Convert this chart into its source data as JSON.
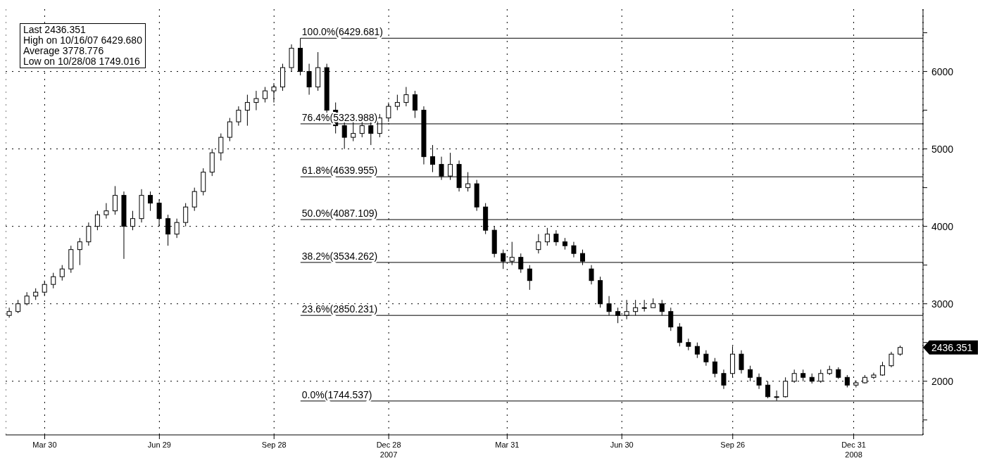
{
  "chart_data": {
    "type": "candlestick",
    "color": "#000000",
    "grid": true,
    "x": [
      "2007-03-02",
      "2007-03-09",
      "2007-03-16",
      "2007-03-23",
      "2007-03-30",
      "2007-04-06",
      "2007-04-13",
      "2007-04-20",
      "2007-04-27",
      "2007-05-04",
      "2007-05-11",
      "2007-05-18",
      "2007-05-25",
      "2007-06-01",
      "2007-06-08",
      "2007-06-15",
      "2007-06-22",
      "2007-06-29",
      "2007-07-06",
      "2007-07-13",
      "2007-07-20",
      "2007-07-27",
      "2007-08-03",
      "2007-08-10",
      "2007-08-17",
      "2007-08-24",
      "2007-08-31",
      "2007-09-07",
      "2007-09-14",
      "2007-09-21",
      "2007-09-28",
      "2007-10-05",
      "2007-10-12",
      "2007-10-19",
      "2007-10-26",
      "2007-11-02",
      "2007-11-09",
      "2007-11-16",
      "2007-11-23",
      "2007-11-30",
      "2007-12-07",
      "2007-12-14",
      "2007-12-21",
      "2007-12-28",
      "2008-01-04",
      "2008-01-11",
      "2008-01-18",
      "2008-01-25",
      "2008-02-01",
      "2008-02-08",
      "2008-02-15",
      "2008-02-22",
      "2008-02-29",
      "2008-03-07",
      "2008-03-14",
      "2008-03-21",
      "2008-03-28",
      "2008-04-04",
      "2008-04-11",
      "2008-04-18",
      "2008-04-25",
      "2008-05-02",
      "2008-05-09",
      "2008-05-16",
      "2008-05-23",
      "2008-05-30",
      "2008-06-06",
      "2008-06-13",
      "2008-06-20",
      "2008-06-27",
      "2008-07-04",
      "2008-07-11",
      "2008-07-18",
      "2008-07-25",
      "2008-08-01",
      "2008-08-08",
      "2008-08-15",
      "2008-08-22",
      "2008-08-29",
      "2008-09-05",
      "2008-09-12",
      "2008-09-19",
      "2008-09-26",
      "2008-10-03",
      "2008-10-10",
      "2008-10-17",
      "2008-10-24",
      "2008-10-31",
      "2008-11-07",
      "2008-11-14",
      "2008-11-21",
      "2008-11-28",
      "2008-12-05",
      "2008-12-12",
      "2008-12-19",
      "2008-12-26",
      "2009-01-02",
      "2009-01-09",
      "2009-01-16",
      "2009-01-23",
      "2009-01-30",
      "2009-02-06"
    ],
    "ohlc": [
      [
        2850,
        2950,
        2820,
        2900
      ],
      [
        2900,
        3050,
        2880,
        3000
      ],
      [
        3000,
        3150,
        2980,
        3100
      ],
      [
        3100,
        3200,
        3050,
        3150
      ],
      [
        3150,
        3300,
        3100,
        3250
      ],
      [
        3250,
        3400,
        3200,
        3350
      ],
      [
        3350,
        3500,
        3300,
        3450
      ],
      [
        3450,
        3750,
        3400,
        3700
      ],
      [
        3700,
        3850,
        3500,
        3800
      ],
      [
        3800,
        4050,
        3750,
        4000
      ],
      [
        4000,
        4200,
        3950,
        4150
      ],
      [
        4150,
        4300,
        4100,
        4200
      ],
      [
        4200,
        4520,
        4150,
        4400
      ],
      [
        4400,
        4450,
        3580,
        4000
      ],
      [
        4000,
        4200,
        3950,
        4100
      ],
      [
        4100,
        4480,
        4050,
        4400
      ],
      [
        4400,
        4450,
        4200,
        4300
      ],
      [
        4300,
        4350,
        4000,
        4100
      ],
      [
        4100,
        4150,
        3750,
        3900
      ],
      [
        3900,
        4100,
        3850,
        4050
      ],
      [
        4050,
        4300,
        4000,
        4250
      ],
      [
        4250,
        4500,
        4200,
        4450
      ],
      [
        4450,
        4750,
        4400,
        4700
      ],
      [
        4700,
        5000,
        4650,
        4950
      ],
      [
        4950,
        5200,
        4850,
        5150
      ],
      [
        5150,
        5400,
        5100,
        5350
      ],
      [
        5350,
        5550,
        5300,
        5500
      ],
      [
        5500,
        5700,
        5300,
        5600
      ],
      [
        5600,
        5750,
        5500,
        5650
      ],
      [
        5650,
        5800,
        5600,
        5750
      ],
      [
        5750,
        5850,
        5600,
        5800
      ],
      [
        5800,
        6100,
        5750,
        6050
      ],
      [
        6050,
        6350,
        6000,
        6300
      ],
      [
        6300,
        6429.68,
        5950,
        6000
      ],
      [
        6000,
        6100,
        5700,
        5800
      ],
      [
        5800,
        6250,
        5750,
        6050
      ],
      [
        6050,
        6100,
        5400,
        5500
      ],
      [
        5500,
        5600,
        5200,
        5300
      ],
      [
        5300,
        5350,
        5000,
        5150
      ],
      [
        5150,
        5400,
        5100,
        5200
      ],
      [
        5200,
        5450,
        5150,
        5300
      ],
      [
        5300,
        5350,
        5050,
        5200
      ],
      [
        5200,
        5450,
        5150,
        5400
      ],
      [
        5400,
        5600,
        5350,
        5550
      ],
      [
        5550,
        5700,
        5500,
        5600
      ],
      [
        5600,
        5800,
        5550,
        5700
      ],
      [
        5700,
        5750,
        5400,
        5500
      ],
      [
        5500,
        5550,
        4800,
        4900
      ],
      [
        4900,
        5050,
        4700,
        4800
      ],
      [
        4800,
        4900,
        4600,
        4650
      ],
      [
        4650,
        4950,
        4600,
        4800
      ],
      [
        4800,
        4850,
        4450,
        4500
      ],
      [
        4500,
        4700,
        4450,
        4550
      ],
      [
        4550,
        4600,
        4200,
        4250
      ],
      [
        4250,
        4300,
        3900,
        3950
      ],
      [
        3950,
        4000,
        3600,
        3650
      ],
      [
        3650,
        3700,
        3450,
        3550
      ],
      [
        3550,
        3800,
        3500,
        3600
      ],
      [
        3600,
        3650,
        3400,
        3450
      ],
      [
        3450,
        3500,
        3180,
        3300
      ],
      [
        3700,
        3900,
        3650,
        3800
      ],
      [
        3800,
        3980,
        3750,
        3900
      ],
      [
        3900,
        3950,
        3750,
        3800
      ],
      [
        3800,
        3850,
        3700,
        3750
      ],
      [
        3750,
        3800,
        3600,
        3650
      ],
      [
        3650,
        3700,
        3500,
        3550
      ],
      [
        3450,
        3500,
        3250,
        3300
      ],
      [
        3300,
        3350,
        2950,
        3000
      ],
      [
        3000,
        3100,
        2850,
        2900
      ],
      [
        2900,
        2950,
        2750,
        2850
      ],
      [
        2850,
        3050,
        2800,
        2900
      ],
      [
        2900,
        3050,
        2850,
        2950
      ],
      [
        2950,
        3050,
        2900,
        2950
      ],
      [
        2950,
        3070,
        2950,
        3000
      ],
      [
        3000,
        3050,
        2850,
        2900
      ],
      [
        2900,
        2950,
        2650,
        2700
      ],
      [
        2700,
        2750,
        2450,
        2500
      ],
      [
        2500,
        2550,
        2400,
        2450
      ],
      [
        2450,
        2500,
        2300,
        2350
      ],
      [
        2350,
        2400,
        2200,
        2250
      ],
      [
        2250,
        2300,
        2050,
        2100
      ],
      [
        2100,
        2150,
        1900,
        1950
      ],
      [
        2100,
        2450,
        2050,
        2350
      ],
      [
        2350,
        2400,
        2100,
        2150
      ],
      [
        2150,
        2200,
        2000,
        2050
      ],
      [
        2050,
        2100,
        1900,
        1950
      ],
      [
        1950,
        2000,
        1780,
        1800
      ],
      [
        1800,
        1880,
        1749.016,
        1800
      ],
      [
        1800,
        2050,
        1790,
        2000
      ],
      [
        2000,
        2150,
        1980,
        2100
      ],
      [
        2100,
        2150,
        2000,
        2050
      ],
      [
        2050,
        2100,
        1970,
        2000
      ],
      [
        2000,
        2150,
        1980,
        2100
      ],
      [
        2100,
        2200,
        2080,
        2150
      ],
      [
        2150,
        2180,
        2030,
        2050
      ],
      [
        2050,
        2080,
        1920,
        1950
      ],
      [
        1950,
        2010,
        1920,
        1980
      ],
      [
        1980,
        2080,
        1970,
        2050
      ],
      [
        2050,
        2110,
        2030,
        2080
      ],
      [
        2080,
        2250,
        2070,
        2200
      ],
      [
        2200,
        2380,
        2180,
        2350
      ],
      [
        2350,
        2460,
        2330,
        2436.351
      ]
    ],
    "xlim": [
      "2007-02-27",
      "2009-02-24"
    ],
    "xticks": [
      {
        "value": "2007-03-30",
        "label": "Mar 30"
      },
      {
        "value": "2007-06-29",
        "label": "Jun 29"
      },
      {
        "value": "2007-09-28",
        "label": "Sep 28"
      },
      {
        "value": "2007-12-28",
        "label": "Dec 28\n2007"
      },
      {
        "value": "2008-03-31",
        "label": "Mar 31"
      },
      {
        "value": "2008-06-30",
        "label": "Jun 30"
      },
      {
        "value": "2008-09-26",
        "label": "Sep 26"
      },
      {
        "value": "2008-12-31",
        "label": "Dec 31\n2008"
      }
    ],
    "ylim": [
      1307,
      6805
    ],
    "yticks": [
      {
        "value": 1500,
        "label": null
      },
      2000,
      {
        "value": 2436.351,
        "label": "2436.351"
      },
      {
        "value": 2500,
        "label": null
      },
      3000,
      {
        "value": 3500,
        "label": null
      },
      4000,
      {
        "value": 4500,
        "label": null
      },
      5000,
      {
        "value": 5500,
        "label": null
      },
      6000,
      {
        "value": 6500,
        "label": null
      }
    ],
    "ref_lines": [
      {
        "axis": "y",
        "value": 6429.681,
        "label": "100.0%(6429.681)"
      },
      {
        "axis": "y",
        "value": 5323.988,
        "label": "76.4%(5323.988)"
      },
      {
        "axis": "y",
        "value": 4639.955,
        "label": "61.8%(4639.955)"
      },
      {
        "axis": "y",
        "value": 4087.109,
        "label": "50.0%(4087.109)"
      },
      {
        "axis": "y",
        "value": 3534.262,
        "label": "38.2%(3534.262)"
      },
      {
        "axis": "y",
        "value": 2850.231,
        "label": "23.6%(2850.231)"
      },
      {
        "axis": "y",
        "value": 1744.537,
        "label": "0.0%(1744.537)"
      }
    ],
    "annotations": [
      "Last 2436.351",
      "High on 10/16/07 6429.680",
      "Average 3778.776",
      "Low on 10/28/08 1749.016"
    ]
  }
}
